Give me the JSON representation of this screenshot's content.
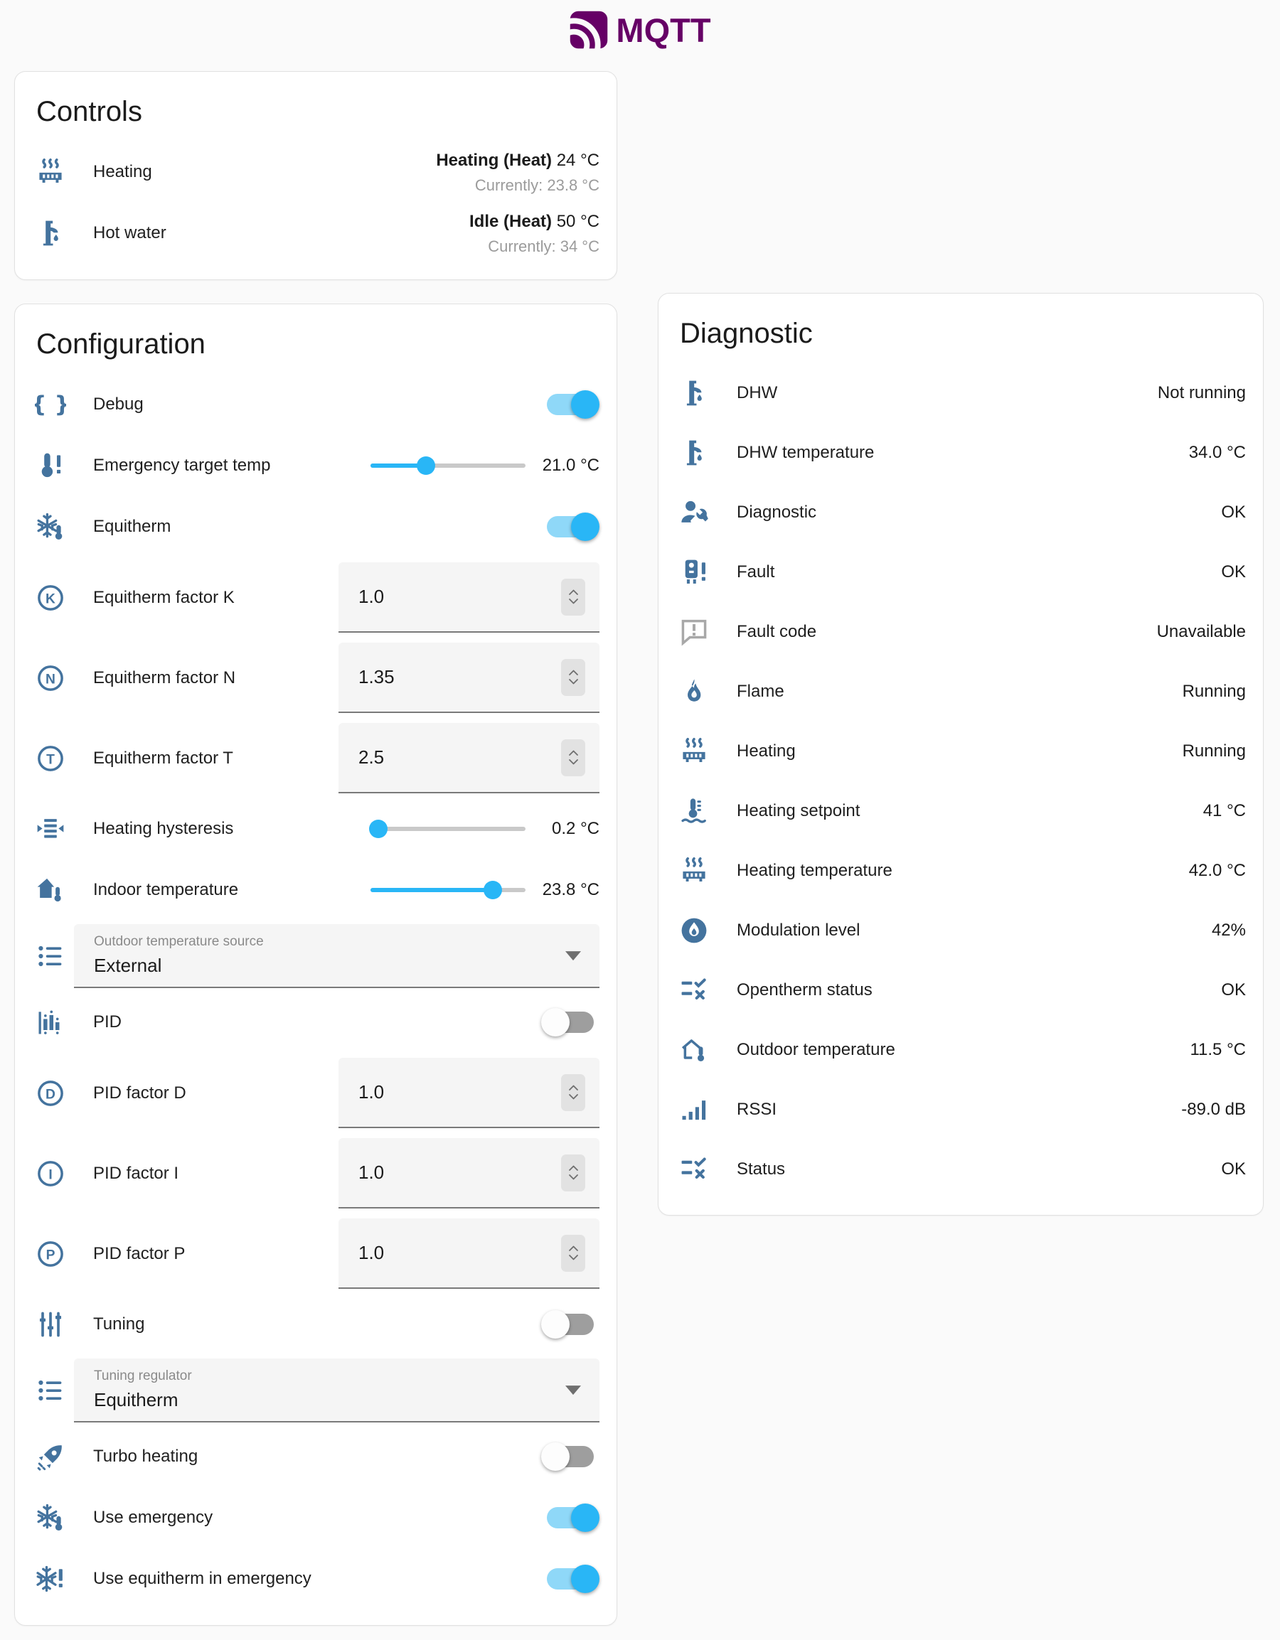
{
  "logo": {
    "text": "MQTT",
    "color": "#660066"
  },
  "colors": {
    "accent": "#29b6f6",
    "toggle_track_on": "#8fd8f8",
    "toggle_track_off": "#9e9e9e",
    "icon_blue": "#44739e",
    "icon_gray": "#a8a8a8",
    "slider_inactive": "#c9c9c9",
    "text": "#212121",
    "secondary_text": "#9b9b9b",
    "logo_purple": "#660066"
  },
  "controls": {
    "title": "Controls",
    "rows": [
      {
        "icon": "radiator-icon",
        "label": "Heating",
        "state_bold": "Heating (Heat)",
        "state_value": "24 °C",
        "secondary": "Currently: 23.8 °C"
      },
      {
        "icon": "faucet-icon",
        "label": "Hot water",
        "state_bold": "Idle (Heat)",
        "state_value": "50 °C",
        "secondary": "Currently: 34 °C"
      }
    ]
  },
  "configuration": {
    "title": "Configuration",
    "rows": [
      {
        "type": "toggle",
        "icon": "code-braces-icon",
        "label": "Debug",
        "on": true
      },
      {
        "type": "slider",
        "icon": "thermometer-alert-icon",
        "label": "Emergency target temp",
        "percent": 36,
        "value": "21.0 °C"
      },
      {
        "type": "toggle",
        "icon": "snowflake-thermometer-icon",
        "label": "Equitherm",
        "on": true
      },
      {
        "type": "number",
        "icon": "letter-k-icon",
        "label": "Equitherm factor K",
        "value": "1.0"
      },
      {
        "type": "number",
        "icon": "letter-n-icon",
        "label": "Equitherm factor N",
        "value": "1.35"
      },
      {
        "type": "number",
        "icon": "letter-t-icon",
        "label": "Equitherm factor T",
        "value": "2.5"
      },
      {
        "type": "slider",
        "icon": "arrow-collapse-icon",
        "label": "Heating hysteresis",
        "percent": 5,
        "value": "0.2 °C"
      },
      {
        "type": "slider",
        "icon": "home-thermometer-icon",
        "label": "Indoor temperature",
        "percent": 79,
        "value": "23.8 °C"
      },
      {
        "type": "select",
        "icon": "list-bulleted-icon",
        "label": "Outdoor temperature source",
        "value": "External"
      },
      {
        "type": "toggle",
        "icon": "chart-bar-icon",
        "label": "PID",
        "on": false
      },
      {
        "type": "number",
        "icon": "letter-d-icon",
        "label": "PID factor D",
        "value": "1.0"
      },
      {
        "type": "number",
        "icon": "letter-i-icon",
        "label": "PID factor I",
        "value": "1.0"
      },
      {
        "type": "number",
        "icon": "letter-p-icon",
        "label": "PID factor P",
        "value": "1.0"
      },
      {
        "type": "toggle",
        "icon": "tune-icon",
        "label": "Tuning",
        "on": false
      },
      {
        "type": "select",
        "icon": "list-bulleted-icon",
        "label": "Tuning regulator",
        "value": "Equitherm"
      },
      {
        "type": "toggle",
        "icon": "rocket-icon",
        "label": "Turbo heating",
        "on": false
      },
      {
        "type": "toggle",
        "icon": "snowflake-thermometer-icon",
        "label": "Use emergency",
        "on": true
      },
      {
        "type": "toggle",
        "icon": "snowflake-alert-icon",
        "label": "Use equitherm in emergency",
        "on": true
      }
    ]
  },
  "diagnostic": {
    "title": "Diagnostic",
    "rows": [
      {
        "icon": "faucet-icon",
        "label": "DHW",
        "value": "Not running"
      },
      {
        "icon": "faucet-icon",
        "label": "DHW temperature",
        "value": "34.0 °C"
      },
      {
        "icon": "account-wrench-icon",
        "label": "Diagnostic",
        "value": "OK"
      },
      {
        "icon": "water-boiler-alert-icon",
        "label": "Fault",
        "value": "OK"
      },
      {
        "icon": "message-alert-icon",
        "label": "Fault code",
        "value": "Unavailable",
        "icon_color": "#a8a8a8"
      },
      {
        "icon": "fire-icon",
        "label": "Flame",
        "value": "Running"
      },
      {
        "icon": "radiator-icon",
        "label": "Heating",
        "value": "Running"
      },
      {
        "icon": "thermometer-water-icon",
        "label": "Heating setpoint",
        "value": "41 °C"
      },
      {
        "icon": "radiator-icon",
        "label": "Heating temperature",
        "value": "42.0 °C"
      },
      {
        "icon": "fire-circle-icon",
        "label": "Modulation level",
        "value": "42%"
      },
      {
        "icon": "list-status-icon",
        "label": "Opentherm status",
        "value": "OK"
      },
      {
        "icon": "home-thermometer-outline-icon",
        "label": "Outdoor temperature",
        "value": "11.5 °C"
      },
      {
        "icon": "signal-icon",
        "label": "RSSI",
        "value": "-89.0 dB"
      },
      {
        "icon": "list-status-icon",
        "label": "Status",
        "value": "OK"
      }
    ]
  }
}
